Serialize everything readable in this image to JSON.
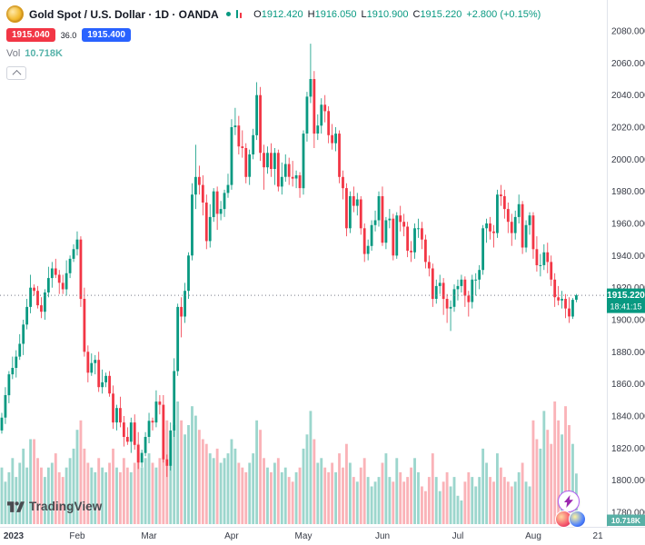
{
  "colors": {
    "up": "#089981",
    "down": "#f23645",
    "vol_up": "rgba(8,153,129,0.40)",
    "vol_down": "rgba(242,54,69,0.38)",
    "accent_blue": "#2962ff",
    "axis_text": "#363a45",
    "dashed_line": "#787b86",
    "vol_badge_bg": "#58b0a6",
    "separator": "#e0e3eb"
  },
  "icons": {
    "symbol": "gold-coin-icon",
    "status": "green-dot-icon",
    "legend_mini": "mini-candles-icon",
    "collapse": "chevron-up-icon",
    "floating": [
      "lightning-icon",
      "promo-red-icon",
      "promo-blue-icon"
    ],
    "logo": "tradingview-logo-icon"
  },
  "legend": {
    "title": "Gold Spot / U.S. Dollar · 1D · OANDA",
    "ohlc": {
      "o_label": "O",
      "o": "1912.420",
      "h_label": "H",
      "h": "1916.050",
      "l_label": "L",
      "l": "1910.900",
      "c_label": "C",
      "c": "1915.220",
      "change": "+2.800 (+0.15%)"
    },
    "bid": "1915.040",
    "spread": "36.0",
    "ask": "1915.400",
    "vol_label": "Vol",
    "vol_value": "10.718K"
  },
  "footer": {
    "logo_text": "TradingView"
  },
  "chart_data": {
    "type": "candlestick_with_volume",
    "symbol": "XAU/USD",
    "exchange": "OANDA",
    "interval": "1D",
    "title": "Gold Spot / U.S. Dollar · 1D · OANDA",
    "price_axis": {
      "range_top": 2080,
      "range_bottom": 1780,
      "tick_step": 20,
      "ticks": [
        "2080.000",
        "2060.000",
        "2040.000",
        "2020.000",
        "2000.000",
        "1980.000",
        "1960.000",
        "1940.000",
        "1920.000",
        "1900.000",
        "1880.000",
        "1860.000",
        "1840.000",
        "1820.000",
        "1800.000",
        "1780.000"
      ]
    },
    "time_axis": {
      "ticks": [
        {
          "slot": 0,
          "label": "2023"
        },
        {
          "slot": 21,
          "label": "Feb"
        },
        {
          "slot": 41,
          "label": "Mar"
        },
        {
          "slot": 64,
          "label": "Apr"
        },
        {
          "slot": 84,
          "label": "May"
        },
        {
          "slot": 106,
          "label": "Jun"
        },
        {
          "slot": 127,
          "label": "Jul"
        },
        {
          "slot": 148,
          "label": "Aug"
        },
        {
          "slot": 166,
          "label": "21"
        }
      ]
    },
    "last_price": {
      "value": 1915.22,
      "label": "1915.220",
      "countdown": "18:41:15",
      "direction": "up"
    },
    "volume_label": "10.718K",
    "volume_max_k": 26,
    "candles": [
      [
        1831,
        1842,
        1829,
        1839,
        12
      ],
      [
        1839,
        1858,
        1835,
        1853,
        9
      ],
      [
        1853,
        1868,
        1848,
        1866,
        11
      ],
      [
        1866,
        1877,
        1863,
        1870,
        14
      ],
      [
        1870,
        1881,
        1864,
        1877,
        10
      ],
      [
        1877,
        1891,
        1875,
        1885,
        13
      ],
      [
        1885,
        1900,
        1878,
        1897,
        16
      ],
      [
        1897,
        1913,
        1894,
        1908,
        12
      ],
      [
        1908,
        1928,
        1904,
        1920,
        18
      ],
      [
        1920,
        1922,
        1915,
        1918,
        18
      ],
      [
        1918,
        1921,
        1907,
        1909,
        14
      ],
      [
        1909,
        1914,
        1901,
        1905,
        12
      ],
      [
        1905,
        1919,
        1900,
        1917,
        10
      ],
      [
        1917,
        1933,
        1914,
        1926,
        12
      ],
      [
        1926,
        1936,
        1920,
        1932,
        13
      ],
      [
        1932,
        1938,
        1926,
        1928,
        15
      ],
      [
        1928,
        1931,
        1916,
        1923,
        11
      ],
      [
        1923,
        1928,
        1916,
        1919,
        10
      ],
      [
        1919,
        1937,
        1915,
        1929,
        12
      ],
      [
        1929,
        1940,
        1926,
        1938,
        14
      ],
      [
        1938,
        1947,
        1936,
        1944,
        16
      ],
      [
        1944,
        1955,
        1940,
        1950,
        20
      ],
      [
        1950,
        1952,
        1908,
        1913,
        22
      ],
      [
        1913,
        1920,
        1877,
        1880,
        16
      ],
      [
        1880,
        1884,
        1861,
        1867,
        13
      ],
      [
        1867,
        1879,
        1865,
        1873,
        12
      ],
      [
        1873,
        1878,
        1866,
        1875,
        11
      ],
      [
        1875,
        1880,
        1855,
        1858,
        14
      ],
      [
        1858,
        1869,
        1854,
        1861,
        12
      ],
      [
        1861,
        1867,
        1858,
        1865,
        11
      ],
      [
        1865,
        1868,
        1852,
        1854,
        13
      ],
      [
        1854,
        1859,
        1832,
        1836,
        16
      ],
      [
        1836,
        1847,
        1831,
        1845,
        12
      ],
      [
        1845,
        1852,
        1833,
        1836,
        11
      ],
      [
        1836,
        1840,
        1821,
        1827,
        14
      ],
      [
        1827,
        1833,
        1822,
        1824,
        12
      ],
      [
        1824,
        1839,
        1817,
        1836,
        11
      ],
      [
        1836,
        1841,
        1819,
        1822,
        13
      ],
      [
        1822,
        1830,
        1807,
        1811,
        17
      ],
      [
        1811,
        1819,
        1808,
        1817,
        12
      ],
      [
        1817,
        1830,
        1815,
        1827,
        14
      ],
      [
        1827,
        1842,
        1823,
        1837,
        15
      ],
      [
        1837,
        1839,
        1831,
        1836,
        13
      ],
      [
        1836,
        1856,
        1833,
        1849,
        12
      ],
      [
        1849,
        1853,
        1841,
        1847,
        14
      ],
      [
        1847,
        1853,
        1811,
        1813,
        20
      ],
      [
        1813,
        1816,
        1802,
        1809,
        22
      ],
      [
        1809,
        1836,
        1806,
        1831,
        18
      ],
      [
        1831,
        1876,
        1827,
        1868,
        21
      ],
      [
        1868,
        1910,
        1865,
        1908,
        26
      ],
      [
        1908,
        1914,
        1889,
        1902,
        22
      ],
      [
        1902,
        1923,
        1898,
        1918,
        19
      ],
      [
        1918,
        1942,
        1913,
        1940,
        21
      ],
      [
        1940,
        1985,
        1937,
        1978,
        25
      ],
      [
        1978,
        2009,
        1969,
        1989,
        23
      ],
      [
        1989,
        1996,
        1978,
        1984,
        20
      ],
      [
        1984,
        1990,
        1965,
        1973,
        18
      ],
      [
        1973,
        1978,
        1944,
        1949,
        17
      ],
      [
        1949,
        1972,
        1945,
        1964,
        15
      ],
      [
        1964,
        1982,
        1961,
        1980,
        14
      ],
      [
        1980,
        1983,
        1956,
        1966,
        16
      ],
      [
        1966,
        1974,
        1962,
        1969,
        13
      ],
      [
        1969,
        1981,
        1964,
        1979,
        14
      ],
      [
        1979,
        1991,
        1976,
        1984,
        15
      ],
      [
        1984,
        2025,
        1981,
        2020,
        18
      ],
      [
        2020,
        2032,
        2015,
        2021,
        16
      ],
      [
        2021,
        2027,
        2003,
        2008,
        13
      ],
      [
        2008,
        2018,
        2001,
        2007,
        12
      ],
      [
        2007,
        2010,
        1985,
        1989,
        11
      ],
      [
        1989,
        2006,
        1984,
        2003,
        13
      ],
      [
        2003,
        2019,
        2000,
        2015,
        15
      ],
      [
        2015,
        2048,
        2012,
        2040,
        22
      ],
      [
        2040,
        2045,
        1999,
        2004,
        20
      ],
      [
        2004,
        2009,
        1981,
        1995,
        14
      ],
      [
        1995,
        2008,
        1991,
        2004,
        12
      ],
      [
        2004,
        2010,
        1989,
        1994,
        11
      ],
      [
        1994,
        2007,
        1984,
        2004,
        13
      ],
      [
        2004,
        2006,
        1980,
        1983,
        14
      ],
      [
        1983,
        1998,
        1978,
        1989,
        11
      ],
      [
        1989,
        2003,
        1986,
        1997,
        12
      ],
      [
        1997,
        2001,
        1984,
        1989,
        10
      ],
      [
        1989,
        1999,
        1983,
        1988,
        9
      ],
      [
        1988,
        1993,
        1982,
        1990,
        11
      ],
      [
        1990,
        1992,
        1976,
        1982,
        12
      ],
      [
        1982,
        2018,
        1978,
        2016,
        16
      ],
      [
        2016,
        2042,
        2011,
        2039,
        19
      ],
      [
        2039,
        2072,
        2035,
        2050,
        24
      ],
      [
        2050,
        2055,
        2007,
        2016,
        18
      ],
      [
        2016,
        2028,
        2012,
        2021,
        13
      ],
      [
        2021,
        2038,
        2016,
        2034,
        14
      ],
      [
        2034,
        2040,
        2023,
        2030,
        12
      ],
      [
        2030,
        2033,
        2010,
        2015,
        11
      ],
      [
        2015,
        2022,
        2006,
        2010,
        13
      ],
      [
        2010,
        2020,
        2005,
        2016,
        11
      ],
      [
        2016,
        2018,
        1985,
        1989,
        15
      ],
      [
        1989,
        1993,
        1975,
        1982,
        12
      ],
      [
        1982,
        1985,
        1952,
        1957,
        17
      ],
      [
        1957,
        1980,
        1954,
        1977,
        13
      ],
      [
        1977,
        1983,
        1967,
        1971,
        10
      ],
      [
        1971,
        1979,
        1965,
        1975,
        9
      ],
      [
        1975,
        1977,
        1953,
        1957,
        12
      ],
      [
        1957,
        1960,
        1936,
        1941,
        14
      ],
      [
        1941,
        1950,
        1937,
        1946,
        10
      ],
      [
        1946,
        1962,
        1943,
        1959,
        8
      ],
      [
        1959,
        1968,
        1955,
        1962,
        9
      ],
      [
        1962,
        1980,
        1958,
        1977,
        10
      ],
      [
        1977,
        1983,
        1946,
        1948,
        13
      ],
      [
        1948,
        1964,
        1944,
        1962,
        15
      ],
      [
        1962,
        1969,
        1957,
        1963,
        10
      ],
      [
        1963,
        1966,
        1937,
        1940,
        9
      ],
      [
        1940,
        1967,
        1938,
        1965,
        14
      ],
      [
        1965,
        1971,
        1955,
        1961,
        11
      ],
      [
        1961,
        1966,
        1952,
        1958,
        9
      ],
      [
        1958,
        1961,
        1939,
        1943,
        10
      ],
      [
        1943,
        1949,
        1936,
        1942,
        12
      ],
      [
        1942,
        1960,
        1938,
        1957,
        14
      ],
      [
        1957,
        1963,
        1951,
        1957,
        11
      ],
      [
        1957,
        1961,
        1944,
        1950,
        8
      ],
      [
        1950,
        1953,
        1932,
        1936,
        7
      ],
      [
        1936,
        1940,
        1927,
        1932,
        10
      ],
      [
        1932,
        1935,
        1908,
        1913,
        15
      ],
      [
        1913,
        1925,
        1910,
        1921,
        10
      ],
      [
        1921,
        1928,
        1916,
        1923,
        7
      ],
      [
        1923,
        1926,
        1903,
        1913,
        9
      ],
      [
        1913,
        1916,
        1898,
        1907,
        11
      ],
      [
        1907,
        1912,
        1893,
        1908,
        8
      ],
      [
        1908,
        1922,
        1905,
        1919,
        10
      ],
      [
        1919,
        1925,
        1912,
        1921,
        6
      ],
      [
        1921,
        1928,
        1917,
        1925,
        5
      ],
      [
        1925,
        1927,
        1908,
        1915,
        9
      ],
      [
        1915,
        1918,
        1902,
        1911,
        11
      ],
      [
        1911,
        1928,
        1907,
        1925,
        10
      ],
      [
        1925,
        1929,
        1915,
        1925,
        8
      ],
      [
        1925,
        1934,
        1919,
        1931,
        10
      ],
      [
        1931,
        1959,
        1928,
        1957,
        16
      ],
      [
        1957,
        1963,
        1948,
        1960,
        13
      ],
      [
        1960,
        1964,
        1950,
        1955,
        10
      ],
      [
        1955,
        1959,
        1945,
        1954,
        9
      ],
      [
        1954,
        1981,
        1951,
        1978,
        15
      ],
      [
        1978,
        1984,
        1971,
        1977,
        12
      ],
      [
        1977,
        1981,
        1963,
        1969,
        10
      ],
      [
        1969,
        1973,
        1954,
        1961,
        9
      ],
      [
        1961,
        1966,
        1946,
        1954,
        8
      ],
      [
        1954,
        1968,
        1950,
        1964,
        9
      ],
      [
        1964,
        1978,
        1960,
        1972,
        11
      ],
      [
        1972,
        1974,
        1941,
        1945,
        13
      ],
      [
        1945,
        1962,
        1942,
        1959,
        9
      ],
      [
        1959,
        1967,
        1953,
        1965,
        8
      ],
      [
        1965,
        1967,
        1938,
        1944,
        22
      ],
      [
        1944,
        1952,
        1930,
        1934,
        18
      ],
      [
        1934,
        1941,
        1927,
        1934,
        16
      ],
      [
        1934,
        1947,
        1931,
        1942,
        24
      ],
      [
        1942,
        1948,
        1929,
        1936,
        20
      ],
      [
        1936,
        1940,
        1921,
        1925,
        17
      ],
      [
        1925,
        1929,
        1908,
        1914,
        26
      ],
      [
        1914,
        1921,
        1909,
        1912,
        22
      ],
      [
        1912,
        1918,
        1907,
        1913,
        19
      ],
      [
        1913,
        1916,
        1901,
        1907,
        25
      ],
      [
        1907,
        1914,
        1898,
        1902,
        21
      ],
      [
        1902,
        1913.5,
        1900.5,
        1912.42,
        17
      ],
      [
        1912.42,
        1916.05,
        1910.9,
        1915.22,
        10.718
      ]
    ]
  }
}
